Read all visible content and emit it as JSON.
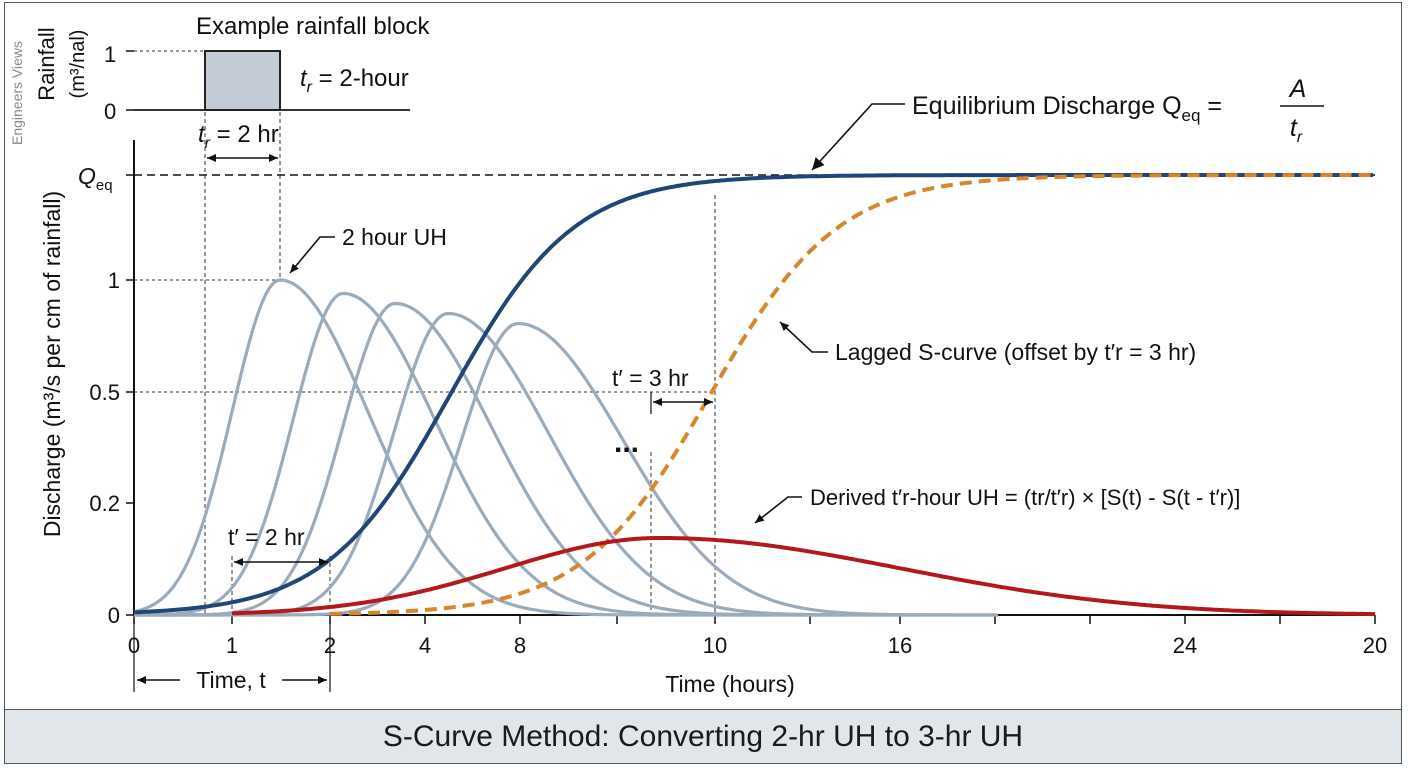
{
  "watermark": "Engineers Views",
  "rainfall": {
    "title": "Example rainfall block",
    "ylabel_line1": "Rainfall",
    "ylabel_line2": "(m³/nal)",
    "tick_1": "1",
    "tick_0": "0",
    "tr_label_t": "t",
    "tr_label_sub": "r",
    "tr_label_rest": " = 2-hour",
    "dim_label_rest": " = 2 hr"
  },
  "main": {
    "ylabel": "Discharge (m³/s per cm of rainfall)",
    "xlabel": "Time (hours)",
    "qeq_label_q": "Q",
    "qeq_label_sub": "eq",
    "yticks": [
      "1",
      "0.5",
      "0.2",
      "0"
    ],
    "xticks": [
      "0",
      "1",
      "2",
      "4",
      "8",
      "10",
      "16",
      "24",
      "20"
    ],
    "time_t_label": "Time, t",
    "ellipsis": "..."
  },
  "annotations": {
    "uh2": "2 hour UH",
    "equilibrium_prefix": "Equilibrium Discharge Q",
    "equilibrium_sub": "eq",
    "equilibrium_eq": " = ",
    "equilibrium_num": "A",
    "equilibrium_den_t": "t",
    "equilibrium_den_sub": "r",
    "lagged": "Lagged S-curve (offset by t′r = 3 hr)",
    "tprime3": "t′ = 3 hr",
    "tprime2": "t′ = 2 hr",
    "derived": "Derived t′r-hour UH = (tr/t′r) × [S(t) - S(t - t′r)]"
  },
  "caption": "S-Curve Method: Converting 2-hr UH to 3-hr UH",
  "colors": {
    "uh_curves": "#9aabbb",
    "s_curve": "#1f4675",
    "lagged_s_curve": "#d8862c",
    "derived_uh": "#b3191c",
    "rain_block": "#c3ccd6",
    "caption_bar": "#e1e6eb"
  },
  "chart_data": {
    "type": "line",
    "series": [
      {
        "role": "2 hour UH",
        "peak": 1.0
      },
      {
        "role": "lagged UH",
        "peak": 0.96
      },
      {
        "role": "lagged UH",
        "peak": 0.93
      },
      {
        "role": "lagged UH",
        "peak": 0.9
      },
      {
        "role": "lagged UH",
        "peak": 0.87
      },
      {
        "role": "S-curve",
        "asymptote": "Q_eq"
      },
      {
        "role": "Lagged S-curve",
        "offset_hr": 3
      },
      {
        "role": "Derived t'r-hour UH"
      }
    ],
    "rainfall_block": {
      "start": "t_r",
      "duration_hr": 2,
      "intensity": 1
    },
    "yticks": [
      "0",
      "0.2",
      "0.5",
      "1",
      "Q_eq"
    ],
    "xticks": [
      "0",
      "1",
      "2",
      "4",
      "8",
      "10",
      "16",
      "24",
      "20"
    ]
  }
}
